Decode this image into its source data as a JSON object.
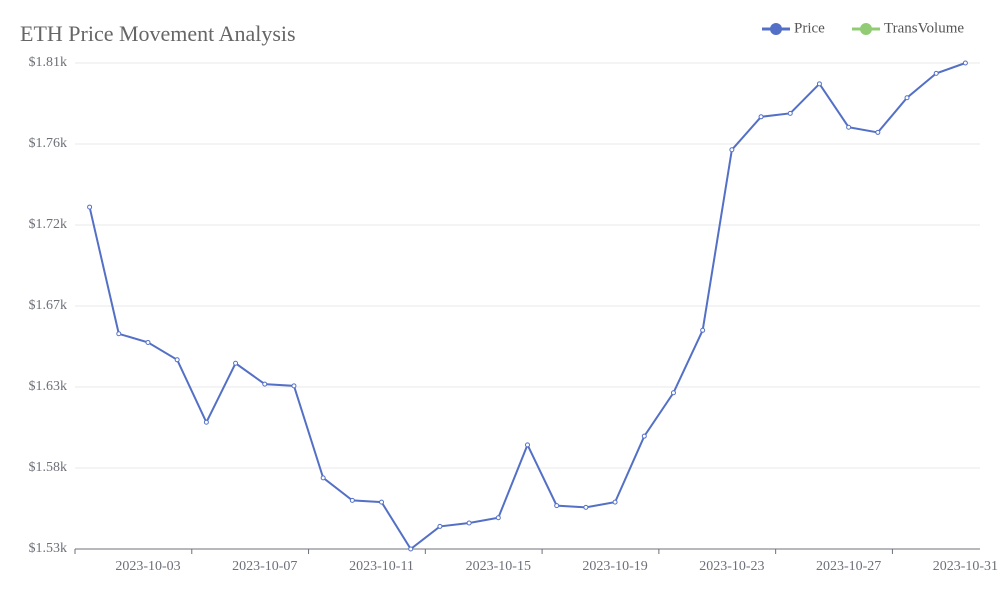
{
  "chart_data": {
    "type": "line",
    "title": "ETH Price Movement Analysis",
    "x": [
      "2023-10-01",
      "2023-10-02",
      "2023-10-03",
      "2023-10-04",
      "2023-10-05",
      "2023-10-06",
      "2023-10-07",
      "2023-10-08",
      "2023-10-09",
      "2023-10-10",
      "2023-10-11",
      "2023-10-12",
      "2023-10-13",
      "2023-10-14",
      "2023-10-15",
      "2023-10-16",
      "2023-10-17",
      "2023-10-18",
      "2023-10-19",
      "2023-10-20",
      "2023-10-21",
      "2023-10-22",
      "2023-10-23",
      "2023-10-24",
      "2023-10-25",
      "2023-10-26",
      "2023-10-27",
      "2023-10-28",
      "2023-10-29",
      "2023-10-30",
      "2023-10-31"
    ],
    "xticks": [
      "2023-10-03",
      "2023-10-07",
      "2023-10-11",
      "2023-10-15",
      "2023-10-19",
      "2023-10-23",
      "2023-10-27",
      "2023-10-31"
    ],
    "series": [
      {
        "name": "Price",
        "color": "#5470c6",
        "values": [
          1727,
          1654,
          1649,
          1639,
          1603,
          1637,
          1625,
          1624,
          1571,
          1558,
          1557,
          1530,
          1543,
          1545,
          1548,
          1590,
          1555,
          1554,
          1557,
          1595,
          1620,
          1656,
          1760,
          1779,
          1781,
          1798,
          1773,
          1770,
          1790,
          1804,
          1810
        ]
      },
      {
        "name": "TransVolume",
        "color": "#91cc75",
        "values": [
          null,
          null,
          null,
          null,
          null,
          null,
          null,
          null,
          null,
          null,
          null,
          null,
          null,
          null,
          null,
          null,
          null,
          null,
          null,
          null,
          null,
          null,
          null,
          null,
          null,
          null,
          null,
          null,
          null,
          null,
          null
        ]
      }
    ],
    "ylim": [
      1530,
      1810
    ],
    "yticks": [
      {
        "value": 1530,
        "label": "$1.53k"
      },
      {
        "value": 1576.67,
        "label": "$1.58k"
      },
      {
        "value": 1623.33,
        "label": "$1.63k"
      },
      {
        "value": 1670,
        "label": "$1.67k"
      },
      {
        "value": 1716.67,
        "label": "$1.72k"
      },
      {
        "value": 1763.33,
        "label": "$1.76k"
      },
      {
        "value": 1810,
        "label": "$1.81k"
      }
    ],
    "grid": true,
    "legend": "top-right"
  }
}
